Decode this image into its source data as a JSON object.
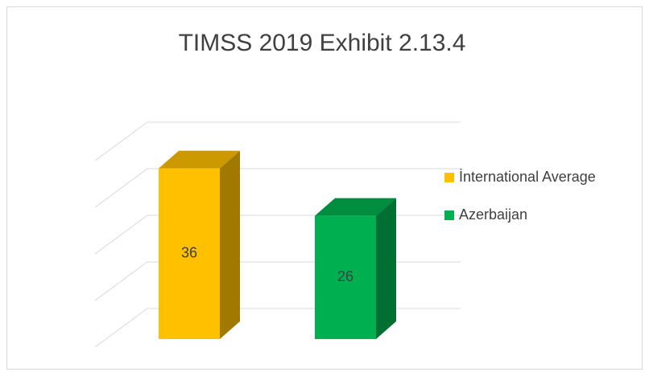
{
  "chart_data": {
    "type": "bar3d",
    "title": "TIMSS 2019 Exhibit 2.13.4",
    "series": [
      {
        "name": "İnternational Average",
        "color": "#ffc000",
        "values": [
          36
        ]
      },
      {
        "name": "Azerbaijan",
        "color": "#00b050",
        "values": [
          26
        ]
      }
    ],
    "ylim": [
      0,
      40
    ],
    "yticks": [
      0,
      10,
      20,
      30,
      40
    ],
    "grid": true,
    "legend": "right"
  }
}
